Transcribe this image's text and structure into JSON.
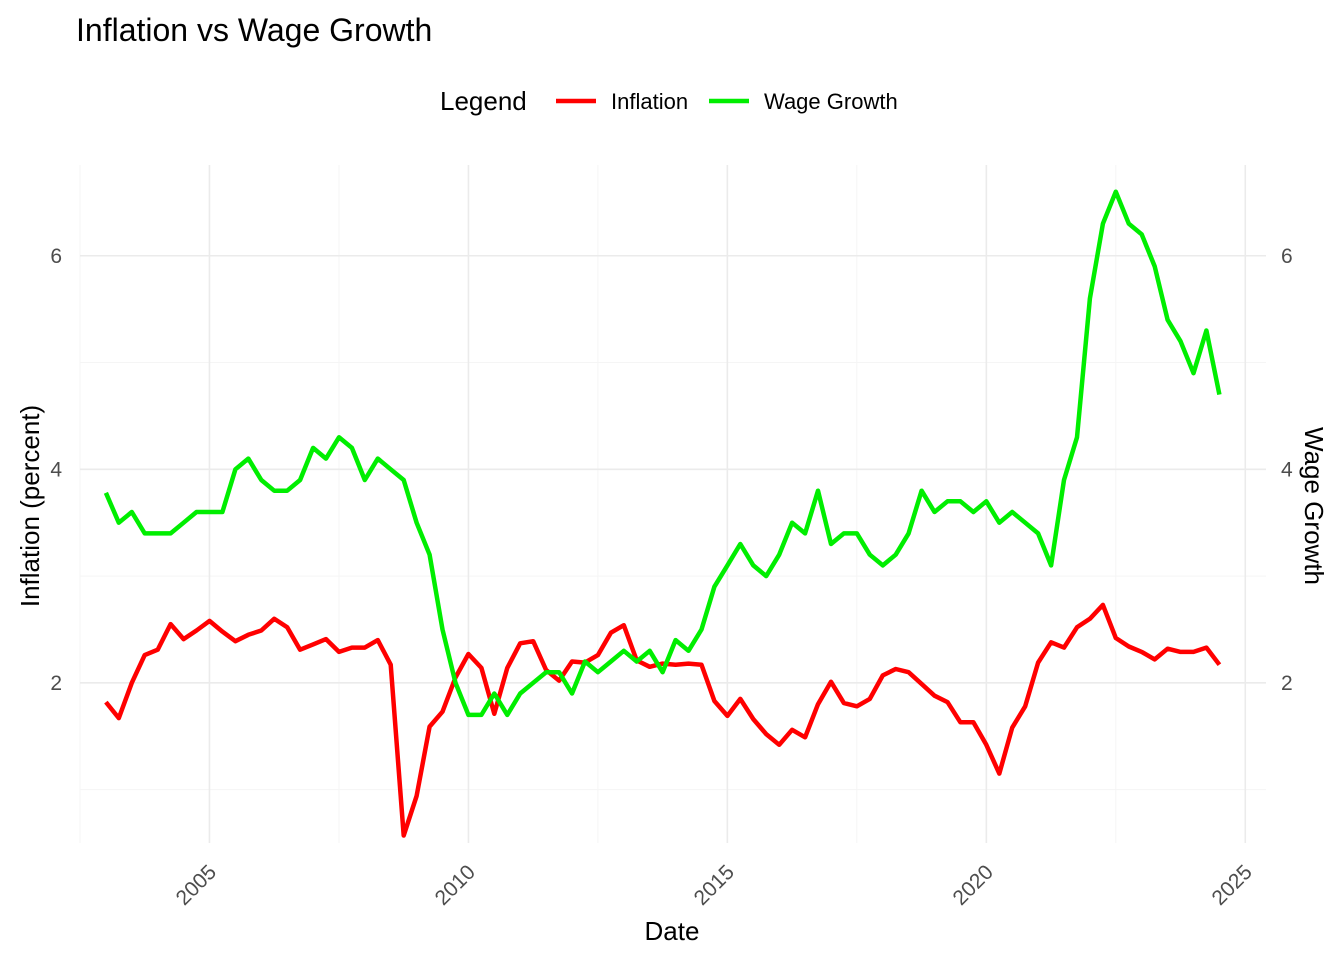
{
  "chart_data": {
    "type": "line",
    "title": "Inflation vs Wage Growth",
    "xlabel": "Date",
    "ylabel": "Inflation (percent)",
    "ylabel_right": "Wage Growth",
    "legend": {
      "title": "Legend",
      "position": "top"
    },
    "grid": true,
    "xlim": [
      2002.5,
      2025.4
    ],
    "ylim": [
      0.5,
      6.85
    ],
    "x_ticks": [
      2005,
      2010,
      2015,
      2020,
      2025
    ],
    "x_tick_labels": [
      "2005",
      "2010",
      "2015",
      "2020",
      "2025"
    ],
    "y_ticks": [
      2,
      4,
      6
    ],
    "y_tick_labels": [
      "2",
      "4",
      "6"
    ],
    "y_ticks_right": [
      2,
      4,
      6
    ],
    "y_tick_labels_right": [
      "2",
      "4",
      "6"
    ],
    "x": [
      2003.0,
      2003.25,
      2003.5,
      2003.75,
      2004.0,
      2004.25,
      2004.5,
      2004.75,
      2005.0,
      2005.25,
      2005.5,
      2005.75,
      2006.0,
      2006.25,
      2006.5,
      2006.75,
      2007.0,
      2007.25,
      2007.5,
      2007.75,
      2008.0,
      2008.25,
      2008.5,
      2008.75,
      2009.0,
      2009.25,
      2009.5,
      2009.75,
      2010.0,
      2010.25,
      2010.5,
      2010.75,
      2011.0,
      2011.25,
      2011.5,
      2011.75,
      2012.0,
      2012.25,
      2012.5,
      2012.75,
      2013.0,
      2013.25,
      2013.5,
      2013.75,
      2014.0,
      2014.25,
      2014.5,
      2014.75,
      2015.0,
      2015.25,
      2015.5,
      2015.75,
      2016.0,
      2016.25,
      2016.5,
      2016.75,
      2017.0,
      2017.25,
      2017.5,
      2017.75,
      2018.0,
      2018.25,
      2018.5,
      2018.75,
      2019.0,
      2019.25,
      2019.5,
      2019.75,
      2020.0,
      2020.25,
      2020.5,
      2020.75,
      2021.0,
      2021.25,
      2021.5,
      2021.75,
      2022.0,
      2022.25,
      2022.5,
      2022.75,
      2023.0,
      2023.25,
      2023.5,
      2023.75,
      2024.0,
      2024.25,
      2024.5
    ],
    "series": [
      {
        "name": "Inflation",
        "color": "#ff0000",
        "axis": "left",
        "values": [
          1.82,
          1.67,
          2.0,
          2.26,
          2.31,
          2.55,
          2.41,
          2.49,
          2.58,
          2.48,
          2.39,
          2.45,
          2.49,
          2.6,
          2.52,
          2.31,
          2.36,
          2.41,
          2.29,
          2.33,
          2.33,
          2.4,
          2.17,
          0.57,
          0.94,
          1.59,
          1.73,
          2.05,
          2.27,
          2.14,
          1.71,
          2.14,
          2.37,
          2.39,
          2.12,
          2.02,
          2.2,
          2.19,
          2.26,
          2.47,
          2.54,
          2.21,
          2.15,
          2.18,
          2.17,
          2.18,
          2.17,
          1.83,
          1.69,
          1.85,
          1.66,
          1.52,
          1.42,
          1.56,
          1.49,
          1.8,
          2.01,
          1.81,
          1.78,
          1.85,
          2.07,
          2.13,
          2.1,
          1.99,
          1.88,
          1.82,
          1.63,
          1.63,
          1.42,
          1.15,
          1.58,
          1.78,
          2.19,
          2.38,
          2.33,
          2.52,
          2.6,
          2.73,
          2.42,
          2.34,
          2.29,
          2.22,
          2.32,
          2.29,
          2.29,
          2.33,
          2.17
        ]
      },
      {
        "name": "Wage Growth",
        "color": "#00ee00",
        "axis": "right",
        "values": [
          3.78,
          3.5,
          3.6,
          3.4,
          3.4,
          3.4,
          3.5,
          3.6,
          3.6,
          3.6,
          4.0,
          4.1,
          3.9,
          3.8,
          3.8,
          3.9,
          4.2,
          4.1,
          4.3,
          4.2,
          3.9,
          4.1,
          4.0,
          3.9,
          3.5,
          3.2,
          2.5,
          2.0,
          1.7,
          1.7,
          1.9,
          1.7,
          1.9,
          2.0,
          2.1,
          2.1,
          1.9,
          2.2,
          2.1,
          2.2,
          2.3,
          2.2,
          2.3,
          2.1,
          2.4,
          2.3,
          2.5,
          2.9,
          3.1,
          3.3,
          3.1,
          3.0,
          3.2,
          3.5,
          3.4,
          3.8,
          3.3,
          3.4,
          3.4,
          3.2,
          3.1,
          3.2,
          3.4,
          3.8,
          3.6,
          3.7,
          3.7,
          3.6,
          3.7,
          3.5,
          3.6,
          3.5,
          3.4,
          3.1,
          3.9,
          4.3,
          5.6,
          6.3,
          6.6,
          6.3,
          6.2,
          5.9,
          5.4,
          5.2,
          4.9,
          5.3,
          4.7
        ]
      }
    ]
  }
}
